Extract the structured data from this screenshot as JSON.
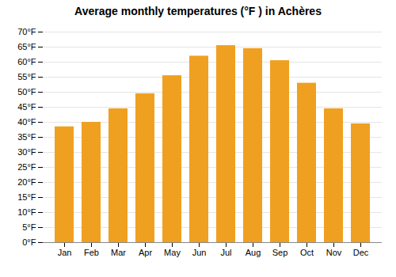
{
  "chart_data": {
    "type": "bar",
    "title": "Average monthly temperatures (°F ) in Achères",
    "categories": [
      "Jan",
      "Feb",
      "Mar",
      "Apr",
      "May",
      "Jun",
      "Jul",
      "Aug",
      "Sep",
      "Oct",
      "Nov",
      "Dec"
    ],
    "values": [
      38.5,
      40.0,
      44.5,
      49.5,
      55.5,
      62.0,
      65.5,
      64.5,
      60.5,
      53.0,
      44.5,
      39.5
    ],
    "color": "#F0A020",
    "ylim": [
      0,
      70
    ],
    "yticks": [
      {
        "value": 0,
        "label": "0°F"
      },
      {
        "value": 5,
        "label": "5°F"
      },
      {
        "value": 10,
        "label": "10°F"
      },
      {
        "value": 15,
        "label": "15°F"
      },
      {
        "value": 20,
        "label": "20°F"
      },
      {
        "value": 25,
        "label": "25°F"
      },
      {
        "value": 30,
        "label": "30°F"
      },
      {
        "value": 35,
        "label": "35°F"
      },
      {
        "value": 40,
        "label": "40°F"
      },
      {
        "value": 45,
        "label": "45°F"
      },
      {
        "value": 50,
        "label": "50°F"
      },
      {
        "value": 55,
        "label": "55°F"
      },
      {
        "value": 60,
        "label": "60°F"
      },
      {
        "value": 65,
        "label": "65°F"
      },
      {
        "value": 70,
        "label": "70°F"
      }
    ],
    "grid": true
  }
}
